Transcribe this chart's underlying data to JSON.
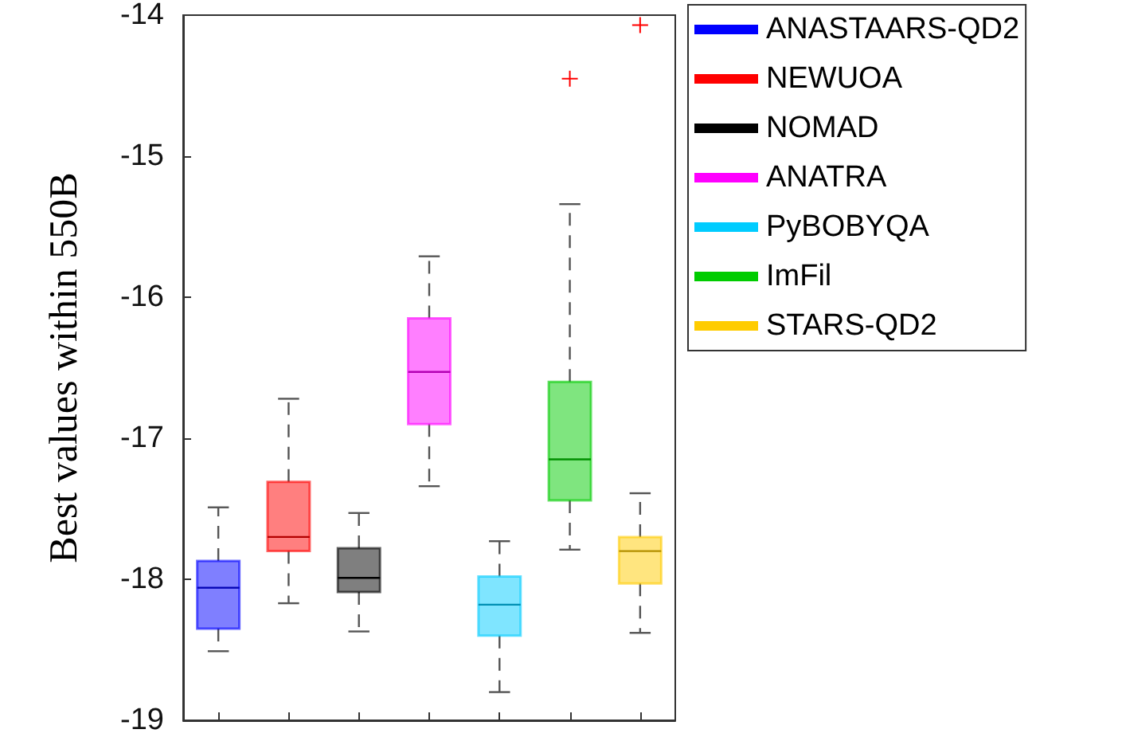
{
  "chart_data": {
    "type": "box",
    "ylabel": "Best values within 550B",
    "categories": [
      null,
      null,
      null,
      null,
      null,
      null,
      null
    ],
    "ylim": [
      -19,
      -14
    ],
    "yticks": [
      -19,
      -18,
      -17,
      -16,
      -15,
      -14
    ],
    "grid": false,
    "legend": "top right",
    "series": [
      {
        "name": "ANASTAARS-QD2",
        "color": "#0000ff",
        "boxes": [
          {
            "low": -18.51,
            "q1": -18.35,
            "median": -18.06,
            "q3": -17.87,
            "high": -17.49
          },
          null,
          null,
          null,
          null,
          null,
          null
        ]
      },
      {
        "name": "NEWUOA",
        "color": "#ff0000",
        "boxes": [
          null,
          {
            "low": -18.17,
            "q1": -17.8,
            "median": -17.7,
            "q3": -17.31,
            "high": -16.72
          },
          null,
          null,
          null,
          null,
          null
        ]
      },
      {
        "name": "NOMAD",
        "color": "#000000",
        "boxes": [
          null,
          null,
          {
            "low": -18.37,
            "q1": -18.09,
            "median": -17.99,
            "q3": -17.78,
            "high": -17.53
          },
          null,
          null,
          null,
          null
        ]
      },
      {
        "name": "ANATRA",
        "color": "#ff00ff",
        "boxes": [
          null,
          null,
          null,
          {
            "low": -17.34,
            "q1": -16.9,
            "median": -16.53,
            "q3": -16.15,
            "high": -15.71
          },
          null,
          null,
          null
        ]
      },
      {
        "name": "PyBOBYQA",
        "color": "#00ccff",
        "boxes": [
          null,
          null,
          null,
          null,
          {
            "low": -18.8,
            "q1": -18.4,
            "median": -18.18,
            "q3": -17.98,
            "high": -17.73
          },
          null,
          null
        ]
      },
      {
        "name": "ImFil",
        "color": "#00cc00",
        "boxes": [
          null,
          null,
          null,
          null,
          null,
          {
            "low": -17.79,
            "q1": -17.44,
            "median": -17.15,
            "q3": -16.6,
            "high": -15.34,
            "outliers": [
              -14.45
            ]
          },
          null
        ]
      },
      {
        "name": "STARS-QD2",
        "color": "#ffcc00",
        "boxes": [
          null,
          null,
          null,
          null,
          null,
          null,
          {
            "low": -18.38,
            "q1": -18.03,
            "median": -17.8,
            "q3": -17.7,
            "high": -17.39,
            "outliers": [
              -14.07
            ]
          }
        ]
      }
    ]
  }
}
